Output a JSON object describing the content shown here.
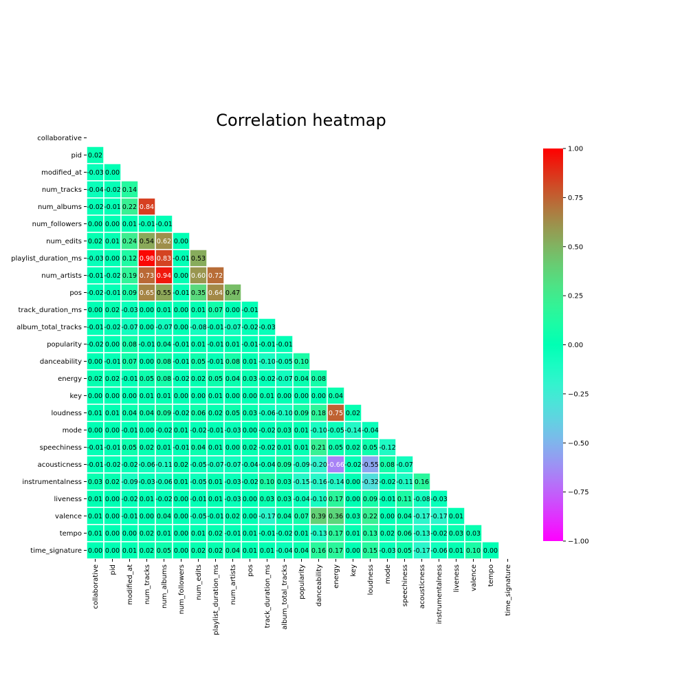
{
  "chart_data": {
    "type": "heatmap",
    "title": "Correlation heatmap",
    "mask": "upper-triangle-and-diagonal",
    "labels": [
      "collaborative",
      "pid",
      "modified_at",
      "num_tracks",
      "num_albums",
      "num_followers",
      "num_edits",
      "playlist_duration_ms",
      "num_artists",
      "pos",
      "track_duration_ms",
      "album_total_tracks",
      "popularity",
      "danceability",
      "energy",
      "key",
      "loudness",
      "mode",
      "speechiness",
      "acousticness",
      "instrumentalness",
      "liveness",
      "valence",
      "tempo",
      "time_signature"
    ],
    "values": [
      [],
      [
        0.02
      ],
      [
        -0.03,
        0.0
      ],
      [
        -0.04,
        -0.02,
        0.14
      ],
      [
        -0.02,
        -0.01,
        0.22,
        0.84
      ],
      [
        -0.0,
        0.0,
        0.01,
        -0.01,
        -0.01
      ],
      [
        0.02,
        0.01,
        0.24,
        0.54,
        0.62,
        -0.0
      ],
      [
        -0.03,
        -0.0,
        0.12,
        0.98,
        0.83,
        -0.01,
        0.53
      ],
      [
        -0.01,
        -0.02,
        0.19,
        0.73,
        0.94,
        0.0,
        0.6,
        0.72
      ],
      [
        -0.02,
        -0.01,
        0.09,
        0.65,
        0.55,
        -0.01,
        0.35,
        0.64,
        0.47
      ],
      [
        0.0,
        0.02,
        -0.03,
        0.0,
        0.01,
        -0.0,
        0.01,
        0.07,
        0.0,
        -0.01
      ],
      [
        -0.01,
        -0.02,
        -0.07,
        0.0,
        -0.07,
        0.0,
        -0.08,
        -0.01,
        -0.07,
        -0.02,
        -0.03
      ],
      [
        -0.02,
        -0.0,
        0.08,
        -0.01,
        0.04,
        -0.01,
        0.01,
        -0.01,
        0.01,
        -0.01,
        -0.01,
        -0.01
      ],
      [
        -0.0,
        -0.01,
        0.07,
        0.0,
        0.08,
        -0.01,
        0.05,
        -0.01,
        0.08,
        0.01,
        -0.1,
        -0.05,
        0.1
      ],
      [
        0.02,
        0.02,
        -0.01,
        0.05,
        0.08,
        -0.02,
        0.02,
        0.05,
        0.04,
        0.03,
        -0.02,
        -0.07,
        0.04,
        0.08
      ],
      [
        0.0,
        0.0,
        -0.0,
        0.01,
        0.01,
        -0.0,
        0.0,
        0.01,
        0.0,
        0.0,
        0.01,
        0.0,
        0.0,
        0.0,
        0.04
      ],
      [
        0.01,
        0.01,
        0.04,
        0.04,
        0.09,
        -0.02,
        0.06,
        0.02,
        0.05,
        0.03,
        -0.06,
        -0.1,
        0.09,
        0.18,
        0.75,
        0.02
      ],
      [
        0.0,
        0.0,
        -0.01,
        0.0,
        -0.02,
        0.01,
        -0.02,
        -0.01,
        -0.03,
        0.0,
        -0.02,
        0.03,
        0.01,
        -0.1,
        -0.05,
        -0.14,
        -0.04
      ],
      [
        -0.01,
        -0.01,
        0.05,
        0.02,
        0.01,
        -0.01,
        0.04,
        0.01,
        0.0,
        0.02,
        -0.02,
        0.01,
        0.01,
        0.21,
        0.05,
        0.02,
        0.05,
        -0.12
      ],
      [
        -0.01,
        -0.02,
        -0.02,
        -0.06,
        -0.11,
        0.02,
        -0.05,
        -0.07,
        -0.07,
        -0.04,
        -0.04,
        0.09,
        -0.09,
        -0.2,
        -0.66,
        -0.02,
        -0.55,
        0.08,
        -0.07
      ],
      [
        0.03,
        0.02,
        -0.09,
        -0.03,
        -0.06,
        0.01,
        -0.05,
        0.01,
        -0.03,
        -0.02,
        0.1,
        0.03,
        -0.15,
        -0.16,
        -0.14,
        -0.0,
        -0.32,
        -0.02,
        -0.11,
        0.16
      ],
      [
        0.01,
        -0.0,
        -0.02,
        0.01,
        -0.02,
        0.0,
        -0.01,
        0.01,
        -0.03,
        -0.0,
        0.03,
        0.03,
        -0.04,
        -0.1,
        0.17,
        0.0,
        0.09,
        -0.01,
        0.11,
        -0.08,
        -0.03
      ],
      [
        0.01,
        -0.0,
        -0.01,
        0.0,
        0.04,
        -0.0,
        -0.05,
        -0.01,
        0.02,
        0.0,
        -0.17,
        0.04,
        0.07,
        0.39,
        0.36,
        0.03,
        0.22,
        0.0,
        0.04,
        -0.17,
        -0.17,
        0.01
      ],
      [
        0.01,
        0.0,
        -0.0,
        0.02,
        0.01,
        -0.0,
        0.01,
        0.02,
        -0.01,
        0.01,
        -0.01,
        -0.02,
        0.01,
        -0.13,
        0.17,
        0.01,
        0.13,
        0.02,
        0.06,
        -0.13,
        -0.02,
        0.03,
        0.03
      ],
      [
        0.0,
        0.0,
        0.01,
        0.02,
        0.05,
        -0.0,
        0.02,
        0.02,
        0.04,
        0.01,
        0.01,
        -0.04,
        0.04,
        0.16,
        0.17,
        -0.0,
        0.15,
        -0.03,
        0.05,
        -0.17,
        -0.06,
        0.01,
        0.1,
        -0.0
      ]
    ],
    "colormap": "rainbow",
    "vmin": -1.0,
    "vmax": 1.0,
    "colorbar_ticks": [
      "1.00",
      "0.75",
      "0.50",
      "0.25",
      "0.00",
      "−0.25",
      "−0.50",
      "−0.75",
      "−1.00"
    ],
    "colorbar_values": [
      1.0,
      0.75,
      0.5,
      0.25,
      0.0,
      -0.25,
      -0.5,
      -0.75,
      -1.0
    ],
    "legend": "right"
  }
}
